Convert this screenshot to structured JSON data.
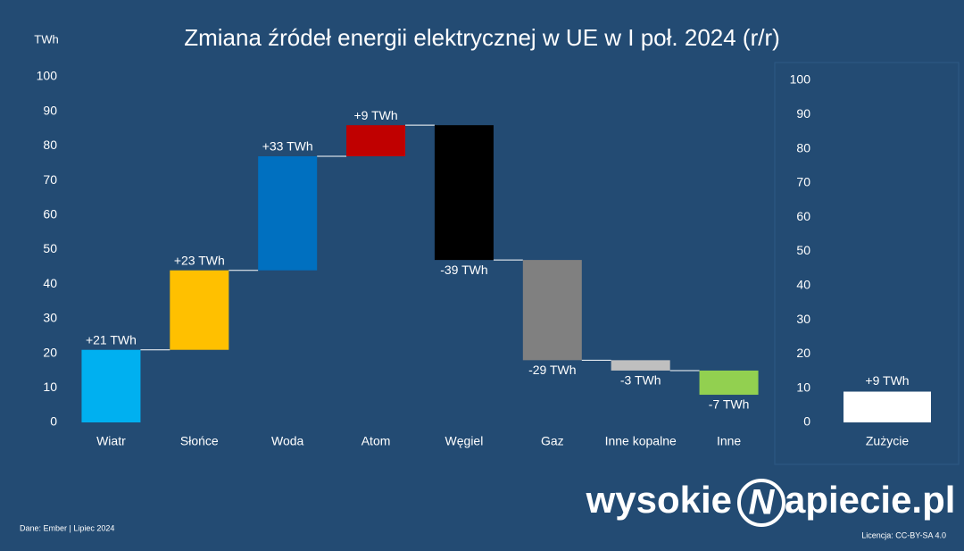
{
  "chart_data": [
    {
      "type": "waterfall",
      "title": "Zmiana źródeł energii elektrycznej w UE w I poł. 2024 (r/r)",
      "y_label": "TWh",
      "categories": [
        "Wiatr",
        "Słońce",
        "Woda",
        "Atom",
        "Węgiel",
        "Gaz",
        "Inne kopalne",
        "Inne"
      ],
      "values": [
        21,
        23,
        33,
        9,
        -39,
        -29,
        -3,
        -7
      ],
      "value_labels": [
        "+21 TWh",
        "+23 TWh",
        "+33 TWh",
        "+9 TWh",
        "-39 TWh",
        "-29 TWh",
        "-3 TWh",
        "-7 TWh"
      ],
      "colors": [
        "#00b0f0",
        "#ffc000",
        "#0070c0",
        "#c00000",
        "#000000",
        "#808080",
        "#bfbfbf",
        "#92d050"
      ],
      "ylim": [
        0,
        100
      ],
      "yticks": [
        0,
        10,
        20,
        30,
        40,
        50,
        60,
        70,
        80,
        90,
        100
      ],
      "grid": false
    },
    {
      "type": "bar",
      "categories": [
        "Zużycie"
      ],
      "values": [
        9
      ],
      "value_labels": [
        "+9 TWh"
      ],
      "color": "#ffffff",
      "ylim": [
        0,
        100
      ],
      "yticks": [
        0,
        10,
        20,
        30,
        40,
        50,
        60,
        70,
        80,
        90,
        100
      ],
      "grid": false
    }
  ],
  "source": "Dane: Ember  |  Lipiec 2024",
  "license": "Licencja: CC-BY-SA 4.0",
  "logo": {
    "left": "wysokie",
    "mark": "N",
    "right": "apiecie.pl"
  }
}
